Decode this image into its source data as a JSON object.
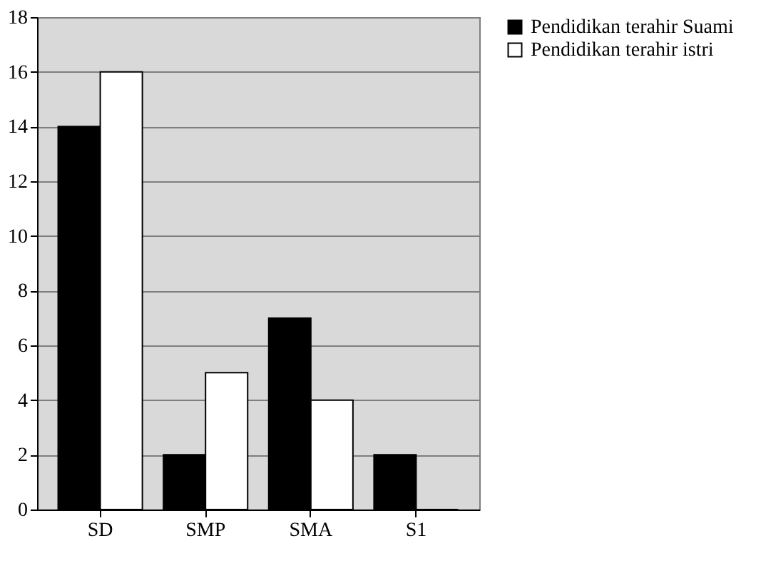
{
  "chart_data": {
    "type": "bar",
    "categories": [
      "SD",
      "SMP",
      "SMA",
      "S1"
    ],
    "series": [
      {
        "name": "Pendidikan terahir Suami",
        "color": "#000000",
        "values": [
          14,
          2,
          7,
          2
        ]
      },
      {
        "name": "Pendidikan terahir istri",
        "color": "#ffffff",
        "values": [
          16,
          5,
          4,
          0
        ]
      }
    ],
    "ylim": [
      0,
      18
    ],
    "yticks": [
      0,
      2,
      4,
      6,
      8,
      10,
      12,
      14,
      16,
      18
    ],
    "grid": "y",
    "legend": "right"
  }
}
